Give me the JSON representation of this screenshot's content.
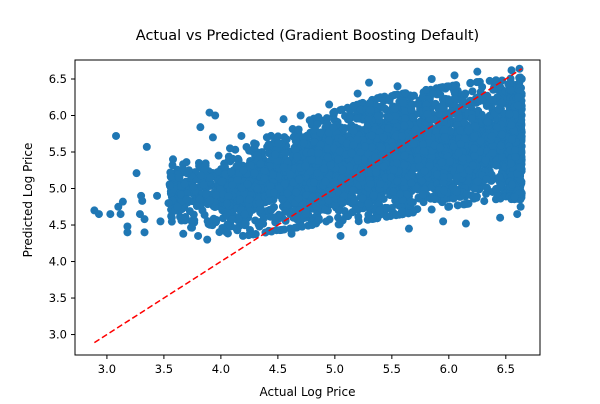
{
  "chart_data": {
    "type": "scatter",
    "title": "Actual vs Predicted (Gradient Boosting Default)",
    "xlabel": "Actual Log Price",
    "ylabel": "Predicted Log Price",
    "xlim": [
      2.72,
      6.8
    ],
    "ylim": [
      2.72,
      6.76
    ],
    "xticks": [
      "3.0",
      "3.5",
      "4.0",
      "4.5",
      "5.0",
      "5.5",
      "6.0",
      "6.5"
    ],
    "yticks": [
      "3.0",
      "3.5",
      "4.0",
      "4.5",
      "5.0",
      "5.5",
      "6.0",
      "6.5"
    ],
    "grid": false,
    "colors": {
      "points": "#1f77b4",
      "reference_line": "#ff0000",
      "axes": "#000000"
    },
    "reference_line": {
      "style": "dashed",
      "x": [
        2.89,
        6.64
      ],
      "y": [
        2.89,
        6.64
      ]
    },
    "series": [
      {
        "outliers": [
          [
            2.89,
            4.7
          ],
          [
            2.93,
            4.65
          ],
          [
            3.03,
            4.65
          ],
          [
            3.08,
            5.72
          ],
          [
            3.1,
            4.75
          ],
          [
            3.12,
            4.65
          ],
          [
            3.14,
            4.82
          ],
          [
            3.18,
            4.48
          ],
          [
            3.18,
            4.4
          ],
          [
            3.26,
            5.21
          ],
          [
            3.29,
            4.65
          ],
          [
            3.3,
            4.9
          ],
          [
            3.31,
            4.83
          ],
          [
            3.33,
            4.58
          ],
          [
            3.33,
            4.4
          ],
          [
            3.35,
            5.57
          ],
          [
            3.44,
            4.9
          ],
          [
            3.47,
            4.55
          ],
          [
            3.54,
            4.8
          ],
          [
            3.56,
            5.16
          ],
          [
            3.58,
            5.4
          ],
          [
            3.62,
            4.75
          ],
          [
            3.65,
            4.92
          ],
          [
            3.67,
            4.38
          ],
          [
            3.7,
            4.85
          ],
          [
            3.72,
            5.25
          ],
          [
            3.76,
            5.02
          ],
          [
            3.8,
            4.35
          ],
          [
            3.82,
            5.84
          ],
          [
            3.85,
            5.05
          ],
          [
            3.88,
            4.3
          ],
          [
            3.9,
            6.04
          ],
          [
            3.93,
            5.7
          ],
          [
            3.95,
            6.0
          ],
          [
            3.98,
            5.45
          ],
          [
            4.05,
            4.4
          ],
          [
            4.08,
            5.55
          ],
          [
            4.1,
            4.58
          ],
          [
            4.18,
            5.72
          ],
          [
            4.25,
            4.85
          ],
          [
            4.35,
            5.9
          ],
          [
            4.42,
            4.42
          ],
          [
            4.55,
            5.95
          ],
          [
            4.62,
            4.38
          ],
          [
            4.7,
            6.0
          ],
          [
            4.8,
            4.5
          ],
          [
            4.95,
            6.15
          ],
          [
            5.05,
            4.35
          ],
          [
            5.2,
            6.3
          ],
          [
            5.25,
            4.4
          ],
          [
            5.3,
            6.45
          ],
          [
            5.55,
            6.4
          ],
          [
            5.65,
            4.45
          ],
          [
            5.85,
            6.5
          ],
          [
            5.95,
            4.55
          ],
          [
            6.05,
            6.55
          ],
          [
            6.15,
            4.52
          ],
          [
            6.25,
            6.6
          ],
          [
            6.45,
            4.6
          ],
          [
            6.55,
            6.62
          ],
          [
            6.6,
            4.65
          ],
          [
            6.62,
            6.64
          ],
          [
            6.63,
            4.75
          ],
          [
            6.64,
            6.5
          ]
        ],
        "dense_band": [
          [
            3.6,
            4.6,
            5.3
          ],
          [
            3.8,
            4.55,
            5.35
          ],
          [
            4.0,
            4.5,
            5.4
          ],
          [
            4.2,
            4.45,
            5.45
          ],
          [
            4.4,
            4.5,
            5.6
          ],
          [
            4.6,
            4.55,
            5.7
          ],
          [
            4.8,
            4.6,
            5.85
          ],
          [
            5.0,
            4.6,
            5.95
          ],
          [
            5.2,
            4.65,
            6.05
          ],
          [
            5.4,
            4.7,
            6.15
          ],
          [
            5.6,
            4.75,
            6.2
          ],
          [
            5.8,
            4.8,
            6.25
          ],
          [
            6.0,
            4.85,
            6.3
          ],
          [
            6.2,
            4.9,
            6.35
          ],
          [
            6.4,
            4.95,
            6.38
          ],
          [
            6.62,
            5.0,
            6.42
          ]
        ]
      }
    ]
  }
}
